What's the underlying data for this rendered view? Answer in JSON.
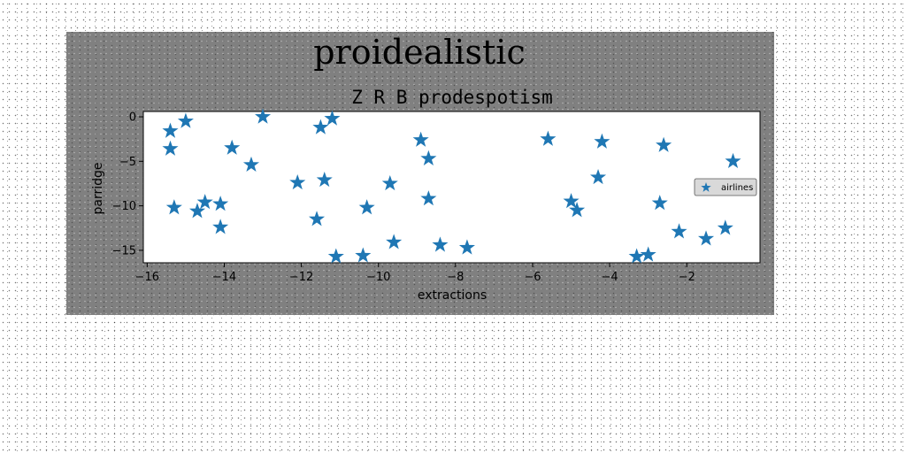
{
  "chart_data": {
    "type": "scatter",
    "suptitle": "proidealistic",
    "title": "Z R B prodespotism",
    "xlabel": "extractions",
    "ylabel": "parridge",
    "xlim": [
      -16.1,
      -0.1
    ],
    "ylim": [
      -16.4,
      0.6
    ],
    "xticks": [
      -16,
      -14,
      -12,
      -10,
      -8,
      -6,
      -4,
      -2
    ],
    "yticks": [
      0,
      -5,
      -10,
      -15
    ],
    "xtick_labels": [
      "−16",
      "−14",
      "−12",
      "−10",
      "−8",
      "−6",
      "−4",
      "−2"
    ],
    "ytick_labels": [
      "0",
      "−5",
      "−10",
      "−15"
    ],
    "legend": "right",
    "grid": false,
    "color": "#1f77b4",
    "series": [
      {
        "name": "airlines",
        "marker": "star",
        "points": [
          [
            -15.4,
            -1.6
          ],
          [
            -15.4,
            -3.6
          ],
          [
            -15.0,
            -0.5
          ],
          [
            -15.3,
            -10.2
          ],
          [
            -14.7,
            -10.6
          ],
          [
            -14.5,
            -9.6
          ],
          [
            -14.1,
            -9.8
          ],
          [
            -14.1,
            -12.4
          ],
          [
            -13.8,
            -3.5
          ],
          [
            -13.3,
            -5.4
          ],
          [
            -13.0,
            0.0
          ],
          [
            -12.1,
            -7.4
          ],
          [
            -11.6,
            -11.5
          ],
          [
            -11.5,
            -1.2
          ],
          [
            -11.4,
            -7.1
          ],
          [
            -11.2,
            -0.2
          ],
          [
            -11.1,
            -15.7
          ],
          [
            -10.4,
            -15.6
          ],
          [
            -10.3,
            -10.2
          ],
          [
            -9.7,
            -7.5
          ],
          [
            -9.6,
            -14.1
          ],
          [
            -8.9,
            -2.6
          ],
          [
            -8.7,
            -9.2
          ],
          [
            -8.7,
            -4.7
          ],
          [
            -8.4,
            -14.4
          ],
          [
            -7.7,
            -14.7
          ],
          [
            -5.6,
            -2.5
          ],
          [
            -5.0,
            -9.5
          ],
          [
            -4.85,
            -10.5
          ],
          [
            -4.3,
            -6.8
          ],
          [
            -4.2,
            -2.8
          ],
          [
            -3.3,
            -15.7
          ],
          [
            -3.0,
            -15.5
          ],
          [
            -2.7,
            -9.7
          ],
          [
            -2.6,
            -3.2
          ],
          [
            -2.2,
            -12.9
          ],
          [
            -1.5,
            -13.7
          ],
          [
            -1.0,
            -12.5
          ],
          [
            -0.8,
            -5.0
          ]
        ]
      }
    ]
  }
}
